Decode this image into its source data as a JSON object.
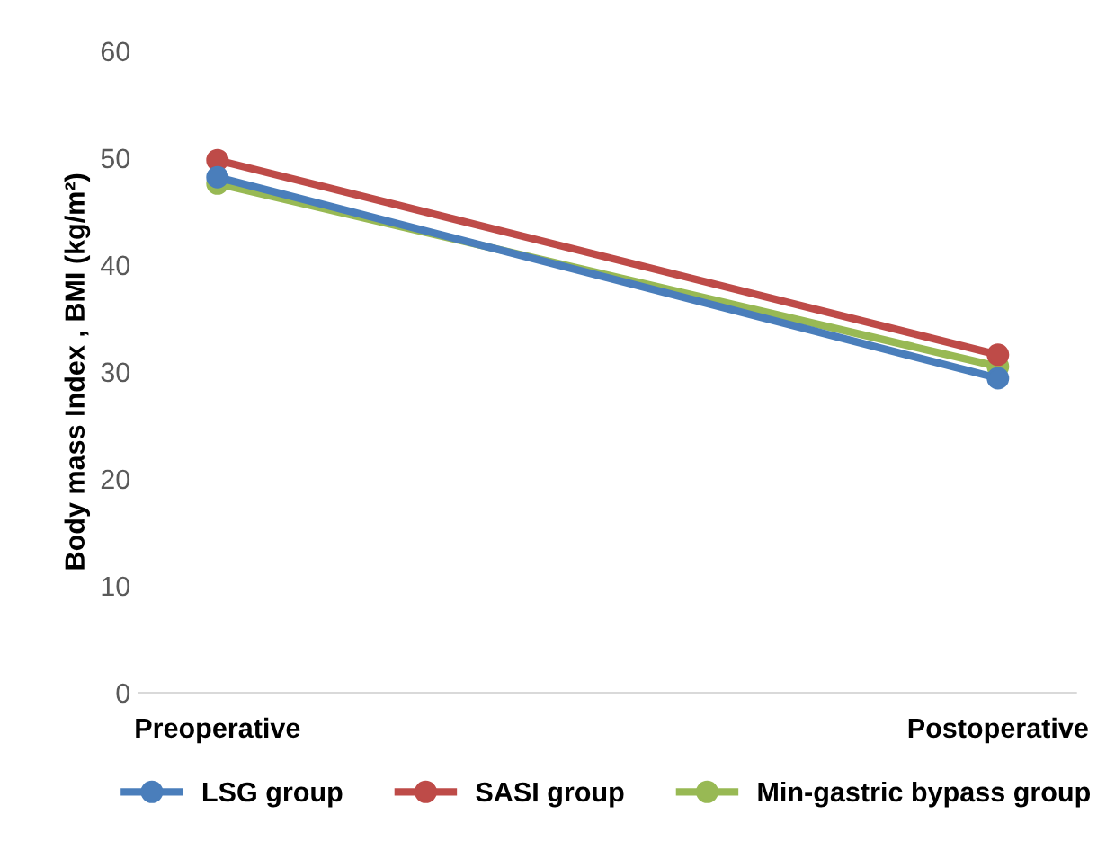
{
  "chart_data": {
    "type": "line",
    "ylabel": "Body mass Index , BMI (kg/m²)",
    "categories": [
      "Preoperative",
      "Postoperative"
    ],
    "series": [
      {
        "name": "LSG group",
        "color": "#4a7ebb",
        "values": [
          48.2,
          29.4
        ]
      },
      {
        "name": "SASI group",
        "color": "#be4b48",
        "values": [
          49.8,
          31.6
        ]
      },
      {
        "name": "Min-gastric bypass group",
        "color": "#98b954",
        "values": [
          47.6,
          30.5
        ]
      }
    ],
    "ylim": [
      0,
      60
    ],
    "yticks": [
      0,
      10,
      20,
      30,
      40,
      50,
      60
    ],
    "grid": false,
    "legend": "bottom",
    "marker": "circle",
    "line_style": "solid"
  }
}
